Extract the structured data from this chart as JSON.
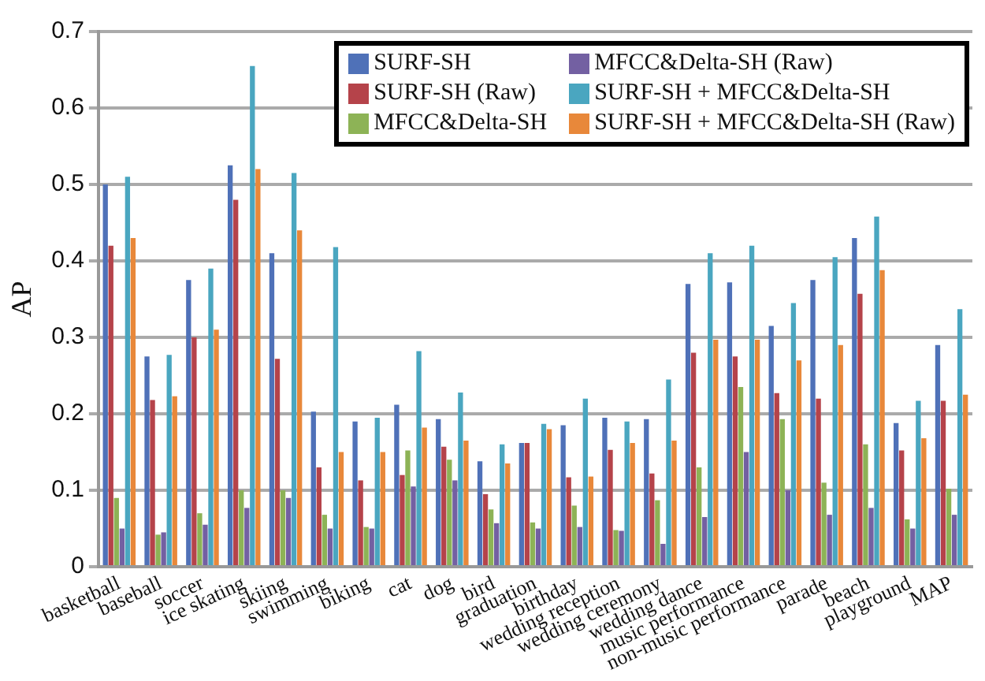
{
  "chart_data": {
    "type": "bar",
    "ylabel": "AP",
    "categories": [
      "basketball",
      "baseball",
      "soccer",
      "ice skating",
      "skiing",
      "swimming",
      "biking",
      "cat",
      "dog",
      "bird",
      "graduation",
      "birthday",
      "wedding reception",
      "wedding ceremony",
      "wedding dance",
      "music performance",
      "non-music performance",
      "parade",
      "beach",
      "playground",
      "MAP"
    ],
    "series": [
      {
        "name": "SURF-SH",
        "color": "#4f71b8",
        "values": [
          0.5,
          0.275,
          0.375,
          0.525,
          0.41,
          0.203,
          0.19,
          0.212,
          0.193,
          0.138,
          0.162,
          0.185,
          0.195,
          0.193,
          0.37,
          0.372,
          0.315,
          0.375,
          0.43,
          0.188,
          0.29
        ]
      },
      {
        "name": "SURF-SH (Raw)",
        "color": "#b5434a",
        "values": [
          0.42,
          0.218,
          0.3,
          0.48,
          0.272,
          0.13,
          0.113,
          0.12,
          0.157,
          0.095,
          0.162,
          0.117,
          0.153,
          0.122,
          0.28,
          0.275,
          0.227,
          0.22,
          0.357,
          0.152,
          0.217
        ]
      },
      {
        "name": "MFCC&Delta-SH",
        "color": "#8db356",
        "values": [
          0.09,
          0.042,
          0.07,
          0.1,
          0.1,
          0.068,
          0.052,
          0.152,
          0.14,
          0.075,
          0.058,
          0.08,
          0.048,
          0.087,
          0.13,
          0.235,
          0.193,
          0.11,
          0.16,
          0.062,
          0.102
        ]
      },
      {
        "name": "MFCC&Delta-SH (Raw)",
        "color": "#7360a2",
        "values": [
          0.05,
          0.045,
          0.055,
          0.077,
          0.09,
          0.05,
          0.05,
          0.105,
          0.113,
          0.057,
          0.05,
          0.052,
          0.047,
          0.03,
          0.065,
          0.15,
          0.1,
          0.068,
          0.077,
          0.05,
          0.068
        ]
      },
      {
        "name": "SURF-SH + MFCC&Delta-SH",
        "color": "#4aa6c0",
        "values": [
          0.51,
          0.277,
          0.39,
          0.655,
          0.515,
          0.418,
          0.195,
          0.282,
          0.228,
          0.16,
          0.187,
          0.22,
          0.19,
          0.245,
          0.41,
          0.42,
          0.345,
          0.405,
          0.458,
          0.217,
          0.337
        ]
      },
      {
        "name": "SURF-SH + MFCC&Delta-SH (Raw)",
        "color": "#e8883a",
        "values": [
          0.43,
          0.223,
          0.31,
          0.52,
          0.44,
          0.15,
          0.15,
          0.182,
          0.165,
          0.135,
          0.18,
          0.118,
          0.162,
          0.165,
          0.297,
          0.297,
          0.27,
          0.29,
          0.388,
          0.168,
          0.225
        ]
      }
    ],
    "ylim": [
      0,
      0.7
    ],
    "yticks": [
      0,
      0.1,
      0.2,
      0.3,
      0.4,
      0.5,
      0.6,
      0.7
    ],
    "grid": "y",
    "legend": "top right"
  }
}
